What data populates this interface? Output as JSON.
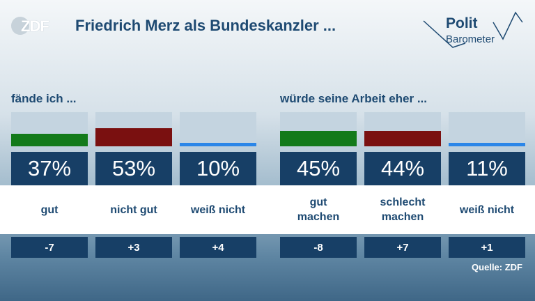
{
  "header": {
    "logo_text": "ZDF",
    "title": "Friedrich Merz als Bundeskanzler ...",
    "brand_line1": "Polit",
    "brand_line2": "Barometer"
  },
  "chart_data": [
    {
      "type": "bar",
      "title": "fände ich ...",
      "unit": "%",
      "ylim": [
        0,
        100
      ],
      "categories": [
        "gut",
        "nicht gut",
        "weiß nicht"
      ],
      "values": [
        37,
        53,
        10
      ],
      "value_labels": [
        "37%",
        "53%",
        "10%"
      ],
      "changes": [
        "-7",
        "+3",
        "+4"
      ],
      "colors": [
        "#137a1a",
        "#7a1010",
        "#2b86e8"
      ]
    },
    {
      "type": "bar",
      "title": "würde seine Arbeit eher ...",
      "unit": "%",
      "ylim": [
        0,
        100
      ],
      "categories": [
        "gut\nmachen",
        "schlecht\nmachen",
        "weiß nicht"
      ],
      "values": [
        45,
        44,
        11
      ],
      "value_labels": [
        "45%",
        "44%",
        "11%"
      ],
      "changes": [
        "-8",
        "+7",
        "+1"
      ],
      "colors": [
        "#137a1a",
        "#7a1010",
        "#2b86e8"
      ]
    }
  ],
  "footer": {
    "source": "Quelle: ZDF"
  }
}
